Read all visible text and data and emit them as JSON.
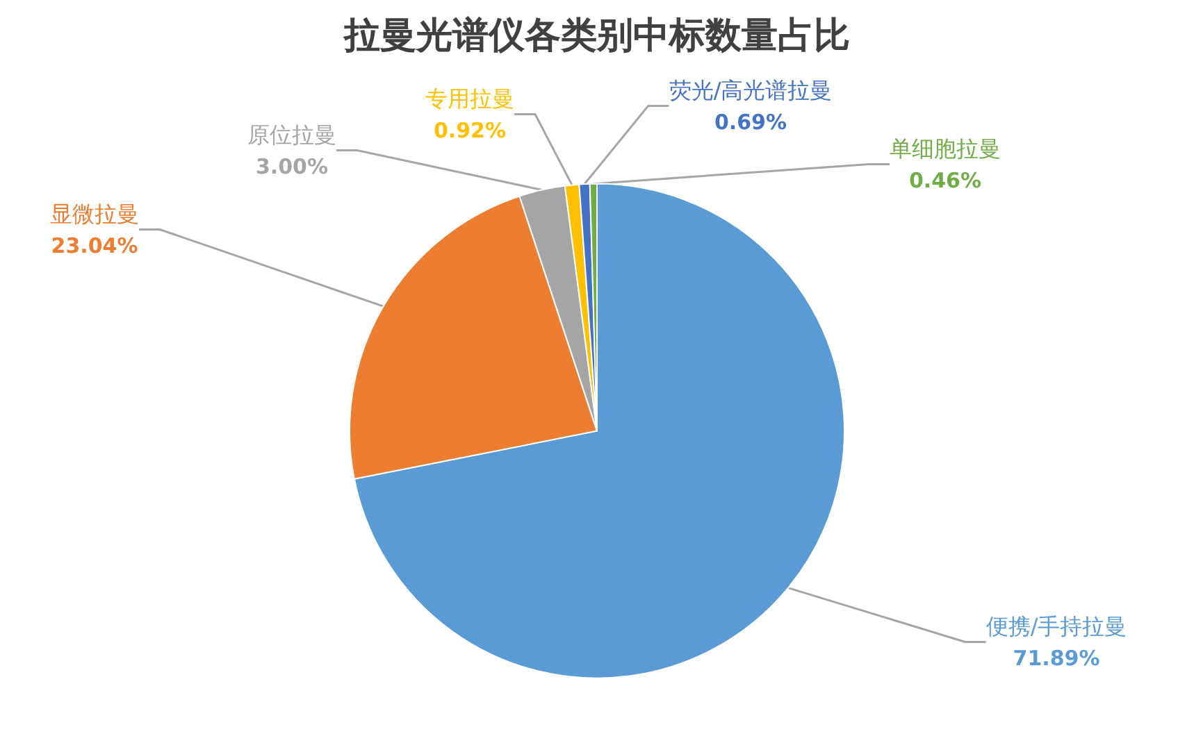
{
  "chart_data": {
    "type": "pie",
    "title": "拉曼光谱仪各类别中标数量占比",
    "categories": [
      "便携/手持拉曼",
      "显微拉曼",
      "原位拉曼",
      "专用拉曼",
      "荧光/高光谱拉曼",
      "单细胞拉曼"
    ],
    "values": [
      71.89,
      23.04,
      3.0,
      0.92,
      0.69,
      0.46
    ],
    "value_labels": [
      "71.89%",
      "23.04%",
      "3.00%",
      "0.92%",
      "0.69%",
      "0.46%"
    ],
    "colors": [
      "#5b9bd5",
      "#ed7d31",
      "#a5a5a5",
      "#ffc000",
      "#4472c4",
      "#70ad47"
    ]
  }
}
